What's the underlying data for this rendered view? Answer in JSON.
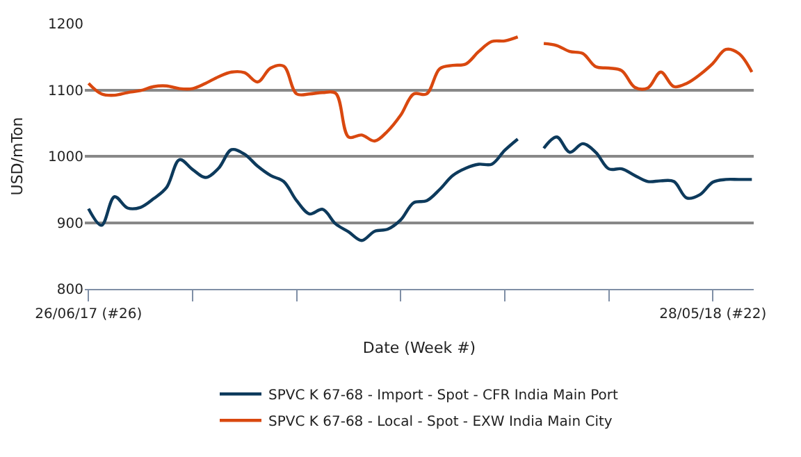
{
  "chart_data": {
    "type": "line",
    "xlabel": "Date (Week #)",
    "ylabel": "USD/mTon",
    "x": [
      "2017-06-26",
      "2017-07-03",
      "2017-07-10",
      "2017-07-17",
      "2017-07-24",
      "2017-07-31",
      "2017-08-07",
      "2017-08-14",
      "2017-08-21",
      "2017-08-28",
      "2017-09-04",
      "2017-09-11",
      "2017-09-18",
      "2017-09-25",
      "2017-10-02",
      "2017-10-09",
      "2017-10-16",
      "2017-10-23",
      "2017-10-30",
      "2017-11-06",
      "2017-11-13",
      "2017-11-20",
      "2017-11-27",
      "2017-12-04",
      "2017-12-11",
      "2017-12-18",
      "2017-12-25",
      "2018-01-01",
      "2018-01-08",
      "2018-01-15",
      "2018-01-22",
      "2018-01-29",
      "2018-02-05",
      "2018-02-12",
      "2018-02-19",
      "2018-02-26",
      "2018-03-05",
      "2018-03-12",
      "2018-03-19",
      "2018-03-26",
      "2018-04-02",
      "2018-04-09",
      "2018-04-16",
      "2018-04-23",
      "2018-04-30",
      "2018-05-07",
      "2018-05-14",
      "2018-05-21",
      "2018-05-28",
      "2018-06-04",
      "2018-06-11",
      "2018-06-18"
    ],
    "series": [
      {
        "name": "SPVC K 67-68 - Import - Spot - CFR India Main Port",
        "color": "#0d3a5c",
        "values": [
          921,
          896,
          939,
          922,
          923,
          936,
          953,
          995,
          980,
          968,
          982,
          1010,
          1003,
          985,
          971,
          962,
          933,
          913,
          920,
          898,
          886,
          873,
          887,
          890,
          904,
          930,
          933,
          950,
          971,
          982,
          988,
          988,
          1009,
          1026,
          null,
          1012,
          1029,
          1006,
          1019,
          1006,
          981,
          981,
          971,
          962,
          963,
          962,
          937,
          942,
          961,
          965,
          965,
          965
        ]
      },
      {
        "name": "SPVC K 67-68 - Local - Spot - EXW India Main City",
        "color": "#d9480f",
        "values": [
          1110,
          1094,
          1092,
          1096,
          1099,
          1105,
          1106,
          1102,
          1102,
          1110,
          1120,
          1127,
          1126,
          1112,
          1133,
          1136,
          1094,
          1094,
          1096,
          1095,
          1029,
          1032,
          1023,
          1038,
          1062,
          1094,
          1094,
          1132,
          1137,
          1139,
          1158,
          1173,
          1174,
          1180,
          null,
          1170,
          1167,
          1158,
          1155,
          1135,
          1133,
          1129,
          1104,
          1103,
          1127,
          1105,
          1110,
          1123,
          1140,
          1161,
          1155,
          1127
        ]
      }
    ],
    "xlim": [
      "2017-06-24",
      "2018-06-19"
    ],
    "xticks": [
      {
        "value": "2017-06-26",
        "label": "26/06/17 (#26)"
      },
      {
        "value": "2017-08-21",
        "label": null
      },
      {
        "value": "2017-10-16",
        "label": null
      },
      {
        "value": "2017-12-11",
        "label": null
      },
      {
        "value": "2018-02-05",
        "label": null
      },
      {
        "value": "2018-04-02",
        "label": null
      },
      {
        "value": "2018-05-28",
        "label": "28/05/18 (#22)"
      }
    ],
    "ylim": [
      800,
      1200
    ],
    "yticks": [
      800,
      900,
      1000,
      1100,
      1200
    ],
    "grid": "y",
    "legend": "bottom",
    "line_style": "solid"
  }
}
